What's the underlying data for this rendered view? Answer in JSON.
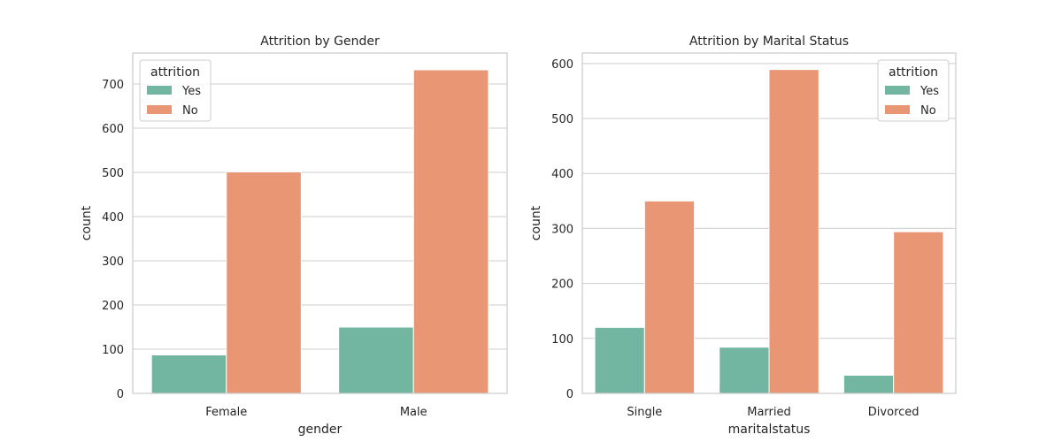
{
  "colors": {
    "background": "#ffffff",
    "grid": "#cccccc",
    "frame": "#cccccc",
    "text": "#262626",
    "yes": "#72b6a1",
    "no": "#e99675"
  },
  "chart_data": [
    {
      "type": "bar",
      "title": "Attrition by Gender",
      "xlabel": "gender",
      "ylabel": "count",
      "categories": [
        "Female",
        "Male"
      ],
      "series": [
        {
          "name": "Yes",
          "values": [
            87,
            150
          ]
        },
        {
          "name": "No",
          "values": [
            501,
            732
          ]
        }
      ],
      "ylim": [
        0,
        770
      ],
      "yticks": [
        0,
        100,
        200,
        300,
        400,
        500,
        600,
        700
      ],
      "grid": true,
      "legend": {
        "title": "attrition",
        "placement": "top-left"
      }
    },
    {
      "type": "bar",
      "title": "Attrition by Marital Status",
      "xlabel": "maritalstatus",
      "ylabel": "count",
      "categories": [
        "Single",
        "Married",
        "Divorced"
      ],
      "series": [
        {
          "name": "Yes",
          "values": [
            120,
            84,
            33
          ]
        },
        {
          "name": "No",
          "values": [
            350,
            589,
            294
          ]
        }
      ],
      "ylim": [
        0,
        619
      ],
      "yticks": [
        0,
        100,
        200,
        300,
        400,
        500,
        600
      ],
      "grid": true,
      "legend": {
        "title": "attrition",
        "placement": "top-right"
      }
    }
  ]
}
